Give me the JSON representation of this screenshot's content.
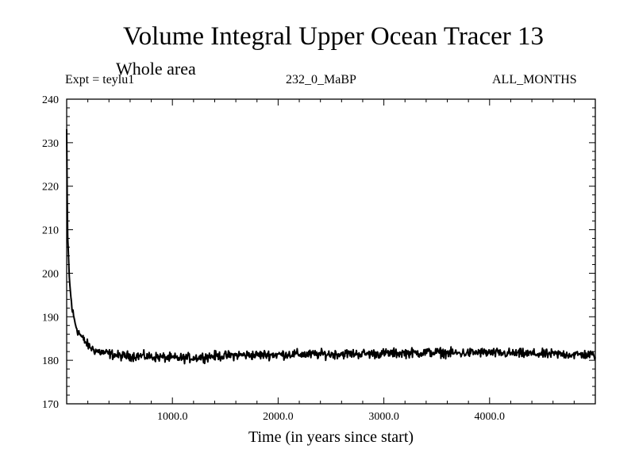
{
  "chart_data": {
    "type": "line",
    "title": "Volume Integral Upper Ocean Tracer 13",
    "subtitle": "Whole area",
    "experiment_label": "Expt = teylu1",
    "run_label": "232_0_MaBP",
    "months_label": "ALL_MONTHS",
    "xlabel": "Time (in years since start)",
    "ylabel": "",
    "xlim": [
      0,
      5000
    ],
    "ylim": [
      170,
      240
    ],
    "x_tick_labels": [
      "1000.0",
      "2000.0",
      "3000.0",
      "4000.0"
    ],
    "y_tick_labels": [
      "170",
      "180",
      "190",
      "200",
      "210",
      "220",
      "230",
      "240"
    ],
    "series": [
      {
        "name": "Tracer 13",
        "color": "#000000",
        "x": [
          0,
          5,
          10,
          20,
          30,
          50,
          75,
          100,
          150,
          200,
          250,
          300,
          400,
          500,
          600,
          700,
          800,
          900,
          1000,
          1100,
          1200,
          1300,
          1400,
          1500,
          1600,
          1700,
          1800,
          1900,
          2000,
          2100,
          2200,
          2300,
          2400,
          2500,
          2600,
          2700,
          2800,
          2900,
          3000,
          3100,
          3200,
          3300,
          3400,
          3500,
          3600,
          3700,
          3800,
          3900,
          4000,
          4100,
          4200,
          4300,
          4400,
          4500,
          4600,
          4700,
          4800,
          4900,
          5000
        ],
        "values": [
          233,
          216,
          208,
          202,
          197,
          192,
          189,
          187,
          185,
          183.5,
          182.5,
          182,
          181.5,
          181,
          181,
          181,
          180.8,
          180.7,
          180.5,
          180.5,
          180.6,
          180.8,
          181,
          181,
          181.2,
          181.2,
          181.2,
          181.3,
          181.3,
          181.4,
          181.4,
          181.3,
          181.4,
          181.4,
          181.5,
          181.5,
          181.5,
          181.5,
          181.6,
          181.6,
          181.7,
          181.7,
          181.8,
          181.8,
          181.7,
          181.6,
          181.7,
          181.8,
          181.7,
          181.6,
          181.6,
          181.5,
          181.5,
          181.4,
          181.4,
          181.4,
          181.3,
          181.3,
          181.2
        ],
        "noise_amplitude": 0.9
      }
    ]
  }
}
